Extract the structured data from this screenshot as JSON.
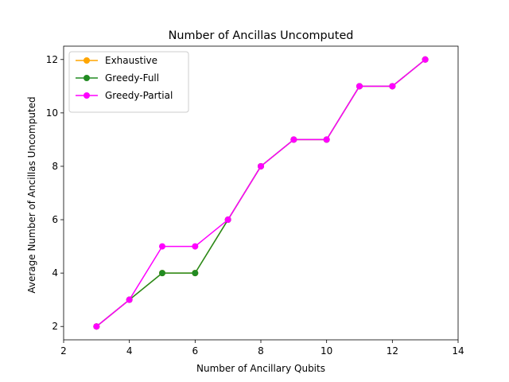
{
  "chart_data": {
    "type": "line",
    "title": "Number of Ancillas Uncomputed",
    "xlabel": "Number of Ancillary Qubits",
    "ylabel": "Average Number of Ancillas Uncomputed",
    "xlim": [
      2,
      14
    ],
    "ylim": [
      1.5,
      12.5
    ],
    "xticks": [
      2,
      4,
      6,
      8,
      10,
      12,
      14
    ],
    "yticks": [
      2,
      4,
      6,
      8,
      10,
      12
    ],
    "x": [
      3,
      4,
      5,
      6,
      7,
      8,
      9,
      10,
      11,
      12,
      13
    ],
    "legend_position": "top-left",
    "series": [
      {
        "name": "Exhaustive",
        "color": "#ffa500",
        "values": [
          2,
          3,
          4,
          4,
          6,
          8,
          9,
          9,
          11,
          11,
          12
        ]
      },
      {
        "name": "Greedy-Full",
        "color": "#228b22",
        "values": [
          2,
          3,
          4,
          4,
          6,
          8,
          9,
          9,
          11,
          11,
          12
        ]
      },
      {
        "name": "Greedy-Partial",
        "color": "#ff00ff",
        "values": [
          2,
          3,
          5,
          5,
          6,
          8,
          9,
          9,
          11,
          11,
          12
        ]
      }
    ]
  }
}
